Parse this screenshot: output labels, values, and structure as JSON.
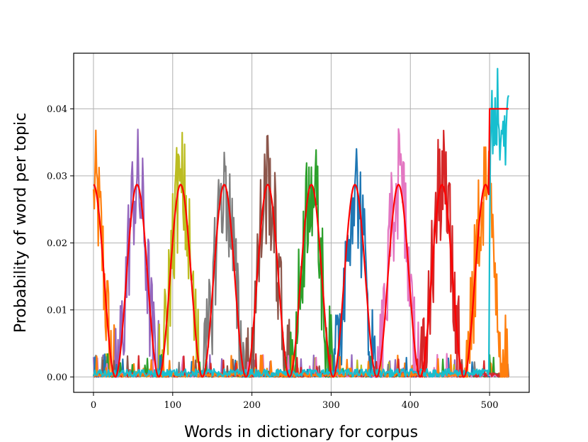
{
  "chart_data": {
    "type": "line",
    "title": "",
    "xlabel": "Words in dictionary for corpus",
    "ylabel": "Probability of word per topic",
    "xlim": [
      -25,
      550
    ],
    "ylim": [
      -0.0023,
      0.0483
    ],
    "x_ticks": [
      0,
      100,
      200,
      300,
      400,
      500
    ],
    "x_tick_labels": [
      "0",
      "100",
      "200",
      "300",
      "400",
      "500"
    ],
    "y_ticks": [
      0.0,
      0.01,
      0.02,
      0.03,
      0.04
    ],
    "y_tick_labels": [
      "0.00",
      "0.01",
      "0.02",
      "0.03",
      "0.04"
    ],
    "grid": true,
    "legend": "none",
    "n_words": 525,
    "reference_curve": {
      "color": "#ff0000",
      "description_free": true,
      "peak": 0.0287,
      "centers": [
        0,
        55,
        110,
        165,
        220,
        275,
        330,
        385,
        440,
        495
      ],
      "half_width": 27.5,
      "tail_start": 500,
      "tail_value": 0.04
    },
    "series": [
      {
        "color": "#ff7f0e",
        "center": 0,
        "peak": 0.028
      },
      {
        "color": "#9467bd",
        "center": 55,
        "peak": 0.0298
      },
      {
        "color": "#bcbd22",
        "center": 110,
        "peak": 0.031
      },
      {
        "color": "#7f7f7f",
        "center": 165,
        "peak": 0.0335
      },
      {
        "color": "#8c564b",
        "center": 220,
        "peak": 0.036
      },
      {
        "color": "#2ca02c",
        "center": 275,
        "peak": 0.0313
      },
      {
        "color": "#1f77b4",
        "center": 330,
        "peak": 0.0287
      },
      {
        "color": "#e377c2",
        "center": 385,
        "peak": 0.037
      },
      {
        "color": "#d62728",
        "center": 440,
        "peak": 0.0337
      },
      {
        "color": "#ff7f0e",
        "center": 495,
        "peak": 0.0343
      },
      {
        "color": "#17becf",
        "center": 512,
        "peak": 0.046,
        "tail": true
      }
    ]
  }
}
